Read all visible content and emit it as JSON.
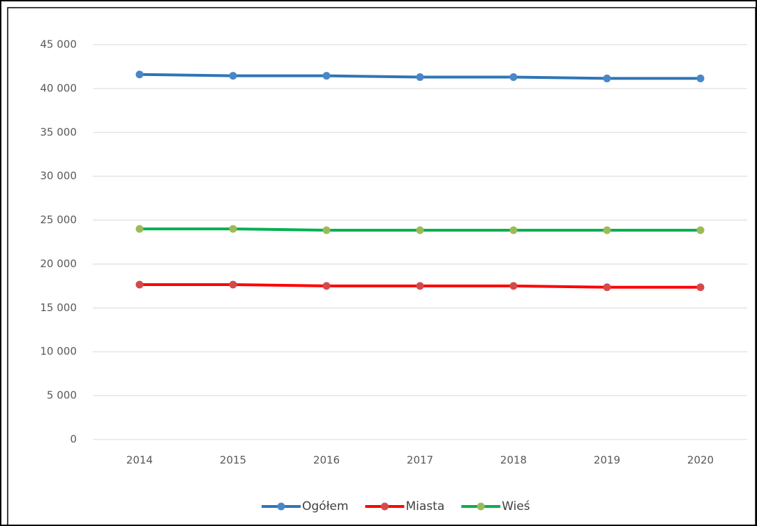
{
  "chart_data": {
    "type": "line",
    "categories": [
      "2014",
      "2015",
      "2016",
      "2017",
      "2018",
      "2019",
      "2020"
    ],
    "series": [
      {
        "name": "Ogółem",
        "color": "#2e75b6",
        "marker_color": "#4a86c8",
        "values": [
          41600,
          41450,
          41450,
          41300,
          41300,
          41150,
          41150
        ]
      },
      {
        "name": "Miasta",
        "color": "#ff0000",
        "marker_color": "#d44a4a",
        "values": [
          17650,
          17650,
          17500,
          17500,
          17500,
          17350,
          17350
        ]
      },
      {
        "name": "Wieś",
        "color": "#00b050",
        "marker_color": "#9bbb59",
        "values": [
          24000,
          24000,
          23850,
          23850,
          23850,
          23850,
          23850
        ]
      }
    ],
    "ylim": [
      0,
      45000
    ],
    "yticks": [
      0,
      {
        "value": 5000,
        "label": "5 000"
      },
      {
        "value": 10000,
        "label": "10 000"
      },
      {
        "value": 15000,
        "label": "15 000"
      },
      {
        "value": 20000,
        "label": "20 000"
      },
      {
        "value": 25000,
        "label": "25 000"
      },
      {
        "value": 30000,
        "label": "30 000"
      },
      {
        "value": 35000,
        "label": "35 000"
      },
      {
        "value": 40000,
        "label": "40 000"
      },
      {
        "value": 45000,
        "label": "45 000"
      }
    ],
    "grid": true,
    "legend": "bottom"
  }
}
